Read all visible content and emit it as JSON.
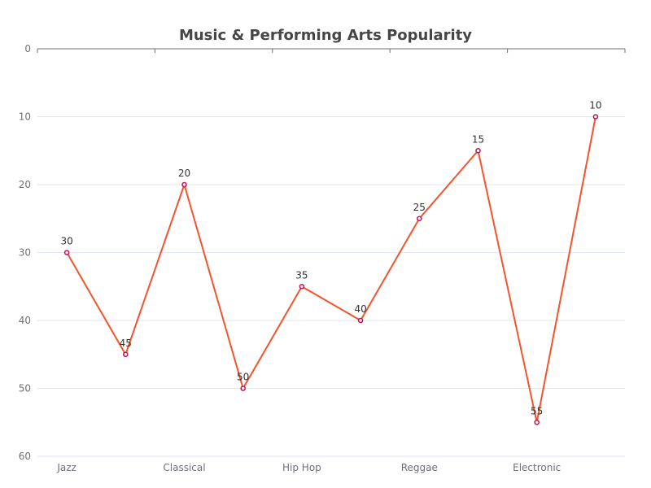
{
  "chart_data": {
    "type": "line",
    "title": "Music & Performing Arts Popularity",
    "categories": [
      "Jazz",
      "",
      "Classical",
      "",
      "Hip Hop",
      "",
      "Reggae",
      "",
      "Electronic",
      ""
    ],
    "series": [
      {
        "values": [
          30,
          45,
          20,
          50,
          35,
          40,
          25,
          15,
          55,
          10
        ]
      }
    ],
    "ylim": [
      0,
      60
    ],
    "y_ticks": [
      0,
      10,
      20,
      30,
      40,
      50,
      60
    ],
    "y_inverted": true,
    "grid": true,
    "data_labels": true,
    "colors": {
      "line": "#f4542d",
      "marker": "#c2185b",
      "title": "#464646",
      "axis": "#6e7079",
      "grid": "#e0e6f1"
    }
  }
}
